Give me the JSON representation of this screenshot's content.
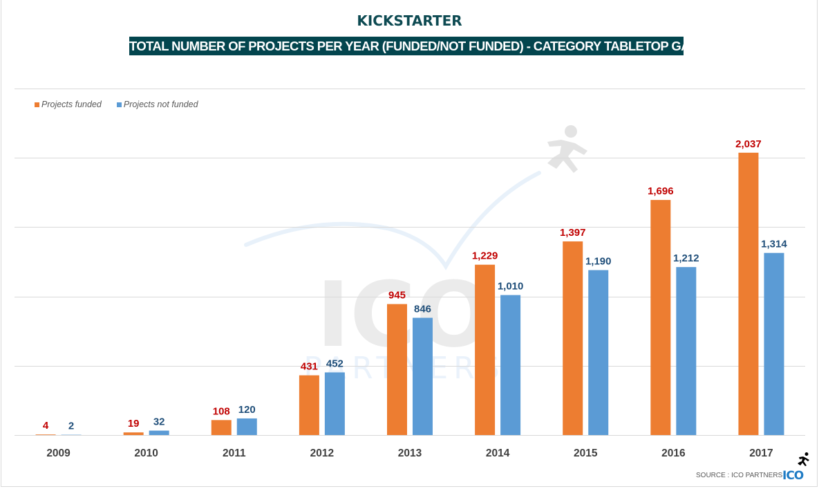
{
  "header": {
    "brand": "KICKSTARTER",
    "title": "TOTAL NUMBER OF PROJECTS PER YEAR (FUNDED/NOT FUNDED) - CATEGORY TABLETOP GAMES"
  },
  "footer": {
    "source": "SOURCE : ICO PARTNERS",
    "logo_text": "ICO"
  },
  "watermark": {
    "text_main": "ICO",
    "text_sub": "PARTNERS"
  },
  "colors": {
    "funded": "#ed7d31",
    "not_funded": "#5b9bd5",
    "funded_label": "#c00000",
    "not_funded_label": "#1f4e79",
    "title_bg": "#03454e",
    "grid": "#d9d9d9"
  },
  "chart_data": {
    "type": "bar",
    "title": "TOTAL NUMBER OF PROJECTS PER YEAR (FUNDED/NOT FUNDED) - CATEGORY TABLETOP GAMES",
    "categories": [
      "2009",
      "2010",
      "2011",
      "2012",
      "2013",
      "2014",
      "2015",
      "2016",
      "2017"
    ],
    "series": [
      {
        "name": "Projects funded",
        "values": [
          4,
          19,
          108,
          431,
          945,
          1229,
          1397,
          1696,
          2037
        ],
        "labels": [
          "4",
          "19",
          "108",
          "431",
          "945",
          "1,229",
          "1,397",
          "1,696",
          "2,037"
        ]
      },
      {
        "name": "Projects not funded",
        "values": [
          2,
          32,
          120,
          452,
          846,
          1010,
          1190,
          1212,
          1314
        ],
        "labels": [
          "2",
          "32",
          "120",
          "452",
          "846",
          "1,010",
          "1,190",
          "1,212",
          "1,314"
        ]
      }
    ],
    "xlabel": "",
    "ylabel": "",
    "ylim": [
      0,
      2500
    ],
    "ytick_step": 500,
    "y_tick_labels_visible": false,
    "grid": true,
    "legend": "top-left"
  }
}
